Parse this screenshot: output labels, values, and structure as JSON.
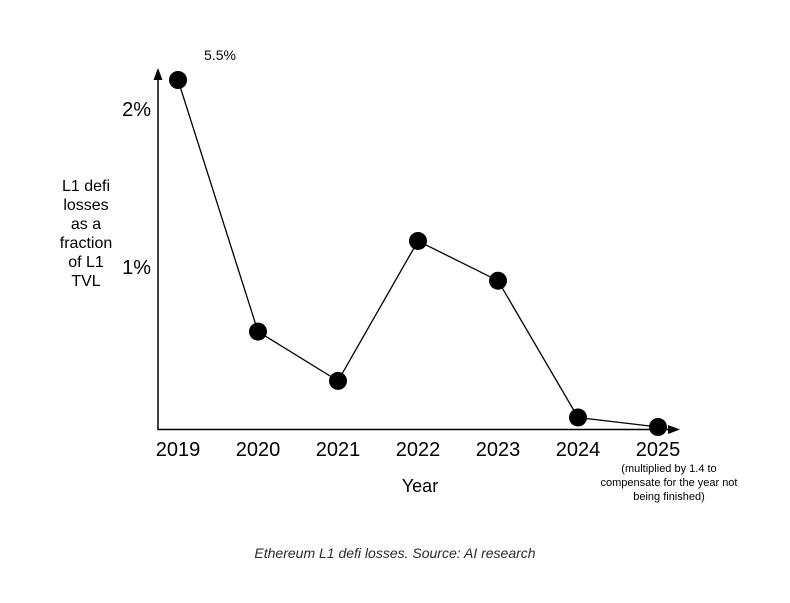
{
  "chart_data": {
    "type": "line",
    "x": [
      "2019",
      "2020",
      "2021",
      "2022",
      "2023",
      "2024",
      "2025"
    ],
    "series": [
      {
        "name": "L1 defi losses as a fraction of L1 TVL",
        "values": [
          5.5,
          0.6,
          0.29,
          1.17,
          0.92,
          0.06,
          0.0
        ]
      }
    ],
    "xlabel": "Year",
    "ylabel": "L1 defi\nlosses\nas a\nfraction\nof L1\nTVL",
    "yticks": [
      {
        "label": "2%",
        "value": 2
      },
      {
        "label": "1%",
        "value": 1
      }
    ],
    "ylim": [
      0,
      2.2
    ],
    "grid": false,
    "legend": "none",
    "point_annotation": {
      "x": "2019",
      "text": "5.5%",
      "note": "2019 value of 5.5% is drawn clipped at the top of the y-axis"
    },
    "x_axis_note": "(multiplied by 1.4 to\ncompensate for the year not\nbeing finished)",
    "x_axis_note_under": "2025"
  },
  "caption": "Ethereum L1 defi losses. Source: AI research",
  "colors": {
    "axis": "#000000",
    "line": "#000000",
    "point": "#000000",
    "background": "#ffffff",
    "caption": "#2b2b2b"
  }
}
